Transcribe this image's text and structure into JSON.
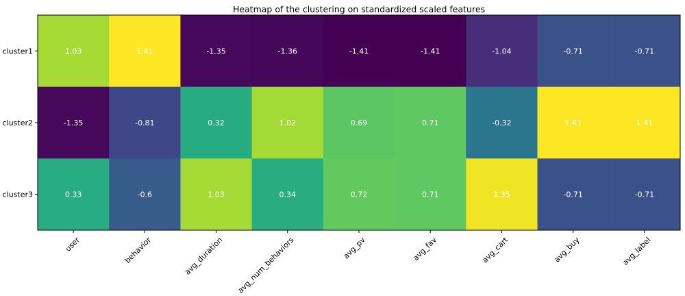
{
  "chart_data": {
    "type": "heatmap",
    "title": "Heatmap of the clustering on standardized scaled features",
    "xlabel": "",
    "ylabel": "",
    "colormap": "viridis",
    "value_range": [
      -1.41,
      1.41
    ],
    "x_categories": [
      "user",
      "behavior",
      "avg_duration",
      "avg_num_behaviors",
      "avg_pv",
      "avg_fav",
      "avg_cart",
      "avg_buy",
      "avg_label"
    ],
    "y_categories": [
      "cluster1",
      "cluster2",
      "cluster3"
    ],
    "values": [
      [
        1.03,
        1.41,
        -1.35,
        -1.36,
        -1.41,
        -1.41,
        -1.04,
        -0.71,
        -0.71
      ],
      [
        -1.35,
        -0.81,
        0.32,
        1.02,
        0.69,
        0.71,
        -0.32,
        1.41,
        1.41
      ],
      [
        0.33,
        -0.6,
        1.03,
        0.34,
        0.72,
        0.71,
        1.35,
        -0.71,
        -0.71
      ]
    ],
    "grid": false,
    "legend": "none"
  }
}
